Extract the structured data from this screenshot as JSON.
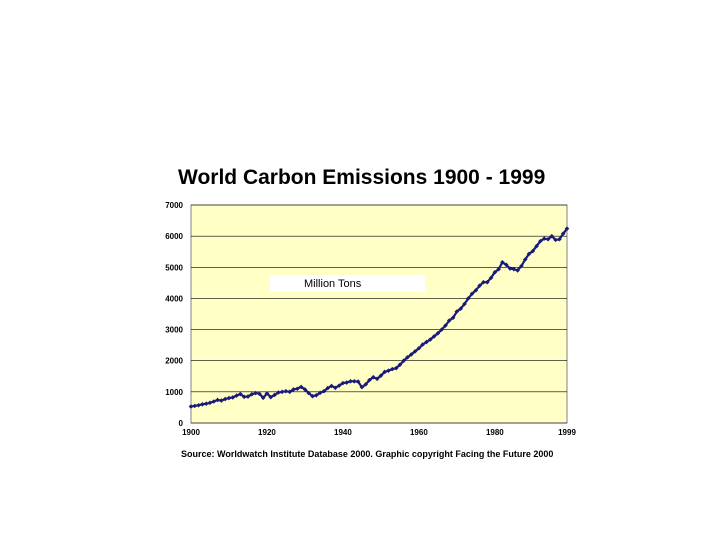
{
  "chart_data": {
    "type": "line",
    "title": "World Carbon Emissions 1900 - 1999",
    "unit_label": "Million Tons",
    "source": "Source: Worldwatch Institute Database 2000.  Graphic copyright Facing the Future 2000",
    "xlabel": "",
    "ylabel": "",
    "xlim": [
      1900,
      1999
    ],
    "ylim": [
      0,
      7000
    ],
    "yticks": [
      0,
      1000,
      2000,
      3000,
      4000,
      5000,
      6000,
      7000
    ],
    "xticks": [
      1900,
      1920,
      1940,
      1960,
      1980,
      1999
    ],
    "grid": "horizontal",
    "plot_background": "#FFFFC6",
    "line_color": "#1A1A7A",
    "x": [
      1900,
      1901,
      1902,
      1903,
      1904,
      1905,
      1906,
      1907,
      1908,
      1909,
      1910,
      1911,
      1912,
      1913,
      1914,
      1915,
      1916,
      1917,
      1918,
      1919,
      1920,
      1921,
      1922,
      1923,
      1924,
      1925,
      1926,
      1927,
      1928,
      1929,
      1930,
      1931,
      1932,
      1933,
      1934,
      1935,
      1936,
      1937,
      1938,
      1939,
      1940,
      1941,
      1942,
      1943,
      1944,
      1945,
      1946,
      1947,
      1948,
      1949,
      1950,
      1951,
      1952,
      1953,
      1954,
      1955,
      1956,
      1957,
      1958,
      1959,
      1960,
      1961,
      1962,
      1963,
      1964,
      1965,
      1966,
      1967,
      1968,
      1969,
      1970,
      1971,
      1972,
      1973,
      1974,
      1975,
      1976,
      1977,
      1978,
      1979,
      1980,
      1981,
      1982,
      1983,
      1984,
      1985,
      1986,
      1987,
      1988,
      1989,
      1990,
      1991,
      1992,
      1993,
      1994,
      1995,
      1996,
      1997,
      1998,
      1999
    ],
    "values": [
      530,
      550,
      570,
      600,
      620,
      650,
      690,
      740,
      720,
      770,
      800,
      820,
      880,
      930,
      840,
      850,
      920,
      960,
      940,
      810,
      950,
      830,
      900,
      980,
      1000,
      1020,
      1000,
      1080,
      1100,
      1160,
      1080,
      960,
      860,
      890,
      970,
      1020,
      1120,
      1190,
      1130,
      1200,
      1280,
      1300,
      1340,
      1340,
      1330,
      1150,
      1240,
      1380,
      1470,
      1420,
      1520,
      1640,
      1680,
      1730,
      1760,
      1870,
      2000,
      2110,
      2200,
      2300,
      2400,
      2520,
      2600,
      2680,
      2780,
      2880,
      3000,
      3130,
      3290,
      3380,
      3580,
      3670,
      3820,
      4000,
      4150,
      4260,
      4410,
      4520,
      4520,
      4660,
      4840,
      4940,
      5160,
      5080,
      4960,
      4940,
      4900,
      5040,
      5250,
      5430,
      5520,
      5680,
      5840,
      5920,
      5900,
      6000,
      5880,
      5900,
      6080,
      6240
    ]
  }
}
